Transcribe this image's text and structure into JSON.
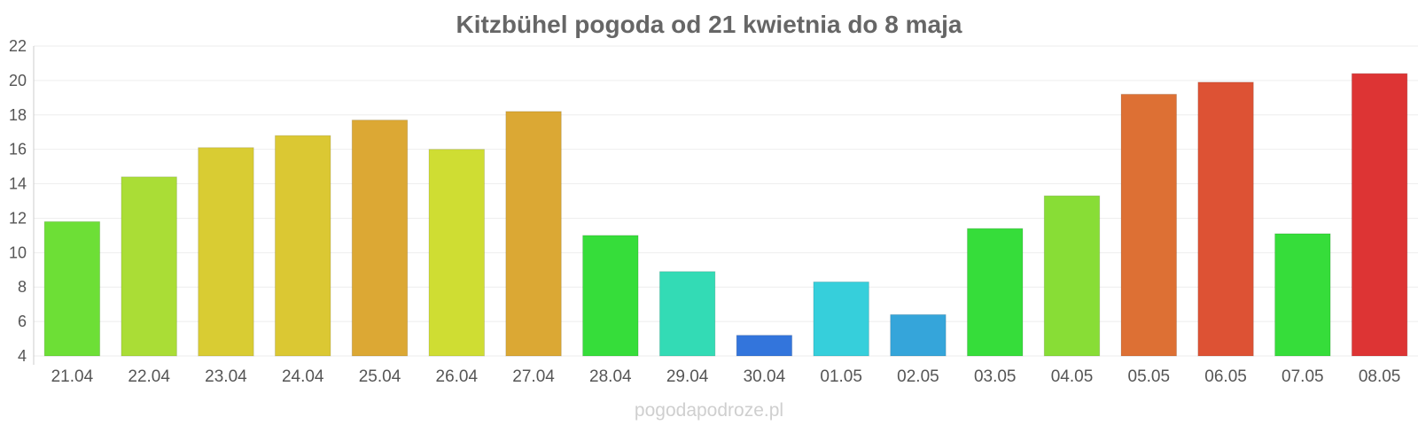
{
  "chart_data": {
    "type": "bar",
    "title": "Kitzbühel pogoda od 21 kwietnia do 8 maja",
    "xlabel": "",
    "ylabel": "",
    "ylim": [
      4,
      22
    ],
    "yticks": [
      4,
      6,
      8,
      10,
      12,
      14,
      16,
      18,
      20,
      22
    ],
    "grid": true,
    "categories": [
      "21.04",
      "22.04",
      "23.04",
      "24.04",
      "25.04",
      "26.04",
      "27.04",
      "28.04",
      "29.04",
      "30.04",
      "01.05",
      "02.05",
      "03.05",
      "04.05",
      "05.05",
      "06.05",
      "07.05",
      "08.05"
    ],
    "values": [
      11.8,
      14.4,
      16.1,
      16.8,
      17.7,
      16.0,
      18.2,
      11.0,
      8.9,
      5.2,
      8.3,
      6.4,
      11.4,
      13.3,
      19.2,
      19.9,
      11.1,
      20.4
    ],
    "colors": [
      "#6ddf36",
      "#aadd36",
      "#d9cc33",
      "#dbc833",
      "#dca834",
      "#cfdd33",
      "#dba834",
      "#36dd3a",
      "#33dbb5",
      "#3375dc",
      "#36cfdb",
      "#35a5da",
      "#36dd3a",
      "#88dd36",
      "#dd7034",
      "#dd5234",
      "#36dd3a",
      "#dd3434"
    ]
  },
  "watermark": "pogodapodroze.pl"
}
